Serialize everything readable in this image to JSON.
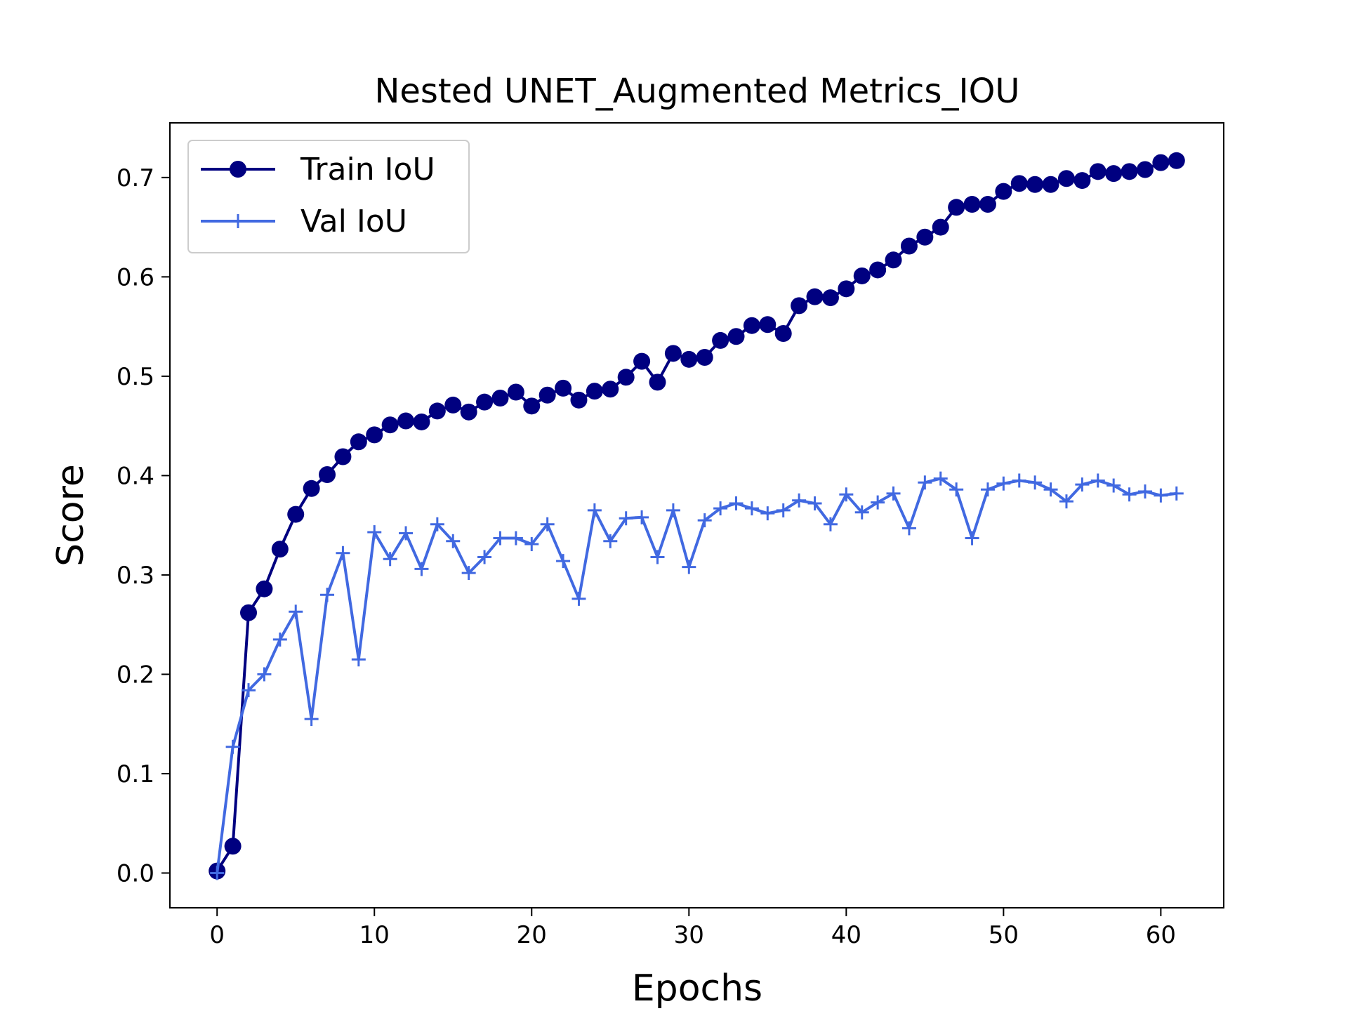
{
  "chart_data": {
    "type": "line",
    "title": "Nested UNET_Augmented Metrics_IOU",
    "xlabel": "Epochs",
    "ylabel": "Score",
    "xlim": [
      -3,
      64
    ],
    "ylim": [
      -0.035,
      0.755
    ],
    "xticks": [
      0,
      10,
      20,
      30,
      40,
      50,
      60
    ],
    "yticks": [
      0.0,
      0.1,
      0.2,
      0.3,
      0.4,
      0.5,
      0.6,
      0.7
    ],
    "grid": false,
    "legend_position": "top-left",
    "series": [
      {
        "name": "Train IoU",
        "color": "#000080",
        "marker": "circle",
        "values": [
          0.002,
          0.027,
          0.262,
          0.286,
          0.326,
          0.361,
          0.387,
          0.401,
          0.419,
          0.434,
          0.441,
          0.451,
          0.455,
          0.454,
          0.465,
          0.471,
          0.464,
          0.474,
          0.478,
          0.484,
          0.47,
          0.481,
          0.488,
          0.476,
          0.485,
          0.487,
          0.499,
          0.515,
          0.494,
          0.523,
          0.517,
          0.519,
          0.536,
          0.54,
          0.551,
          0.552,
          0.543,
          0.571,
          0.58,
          0.579,
          0.588,
          0.601,
          0.607,
          0.617,
          0.631,
          0.64,
          0.65,
          0.67,
          0.673,
          0.673,
          0.686,
          0.694,
          0.693,
          0.693,
          0.699,
          0.697,
          0.706,
          0.704,
          0.706,
          0.708,
          0.715,
          0.717
        ]
      },
      {
        "name": "Val IoU",
        "color": "#4169e1",
        "marker": "plus",
        "values": [
          0.0,
          0.127,
          0.184,
          0.2,
          0.235,
          0.263,
          0.155,
          0.28,
          0.322,
          0.215,
          0.343,
          0.316,
          0.342,
          0.306,
          0.351,
          0.334,
          0.302,
          0.318,
          0.337,
          0.337,
          0.331,
          0.351,
          0.314,
          0.276,
          0.365,
          0.334,
          0.357,
          0.358,
          0.318,
          0.365,
          0.308,
          0.355,
          0.367,
          0.372,
          0.367,
          0.362,
          0.365,
          0.375,
          0.372,
          0.351,
          0.381,
          0.363,
          0.373,
          0.382,
          0.347,
          0.393,
          0.397,
          0.386,
          0.337,
          0.386,
          0.392,
          0.395,
          0.393,
          0.386,
          0.374,
          0.391,
          0.395,
          0.39,
          0.381,
          0.384,
          0.38,
          0.382
        ]
      }
    ]
  }
}
